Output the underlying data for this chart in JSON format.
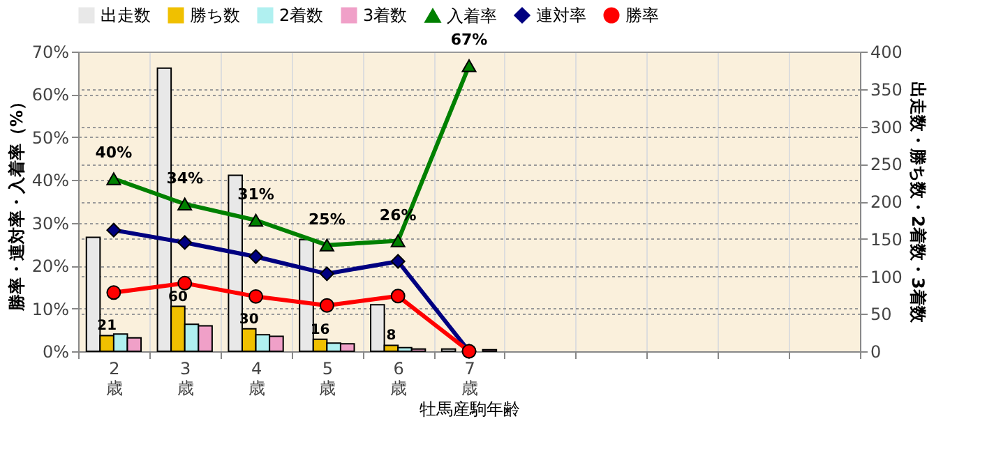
{
  "chart_data": {
    "type": "bar",
    "xlabel": "牡馬産駒年齢",
    "ylabel": "勝率・連対率・入着率（%）",
    "y2label": "出走数・勝ち数・2着数・3着数",
    "categories": [
      "2\n歳",
      "3\n歳",
      "4\n歳",
      "5\n歳",
      "6\n歳",
      "7\n歳",
      null,
      null,
      null,
      null,
      null
    ],
    "series": [
      {
        "name": "出走数",
        "axis": "y2",
        "color": "#e8e8e8",
        "values": [
          152,
          378,
          235,
          149,
          62,
          3,
          null,
          null,
          null,
          null,
          null
        ]
      },
      {
        "name": "勝ち数",
        "axis": "y2",
        "color": "#f0c000",
        "values": [
          21,
          60,
          30,
          16,
          8,
          0,
          null,
          null,
          null,
          null,
          null
        ],
        "value_labels": [
          "21",
          "60",
          "30",
          "16",
          "8",
          null,
          null,
          null,
          null,
          null,
          null
        ]
      },
      {
        "name": "2着数",
        "axis": "y2",
        "color": "#b0f0f0",
        "values": [
          23,
          36,
          22,
          11,
          5,
          0,
          null,
          null,
          null,
          null,
          null
        ]
      },
      {
        "name": "3着数",
        "axis": "y2",
        "color": "#f0a0c8",
        "values": [
          18,
          34,
          20,
          10,
          3,
          2,
          null,
          null,
          null,
          null,
          null
        ]
      },
      {
        "name": "入着率",
        "type": "line",
        "marker": "triangle",
        "color": "#008000",
        "values": [
          40.3,
          34.4,
          30.6,
          24.8,
          25.8,
          66.7,
          null,
          null,
          null,
          null,
          null
        ],
        "value_labels": [
          "40%",
          "34%",
          "31%",
          "25%",
          "26%",
          "67%",
          null,
          null,
          null,
          null,
          null
        ]
      },
      {
        "name": "連対率",
        "type": "line",
        "marker": "diamond",
        "color": "#000080",
        "values": [
          28.3,
          25.4,
          22.1,
          18.1,
          21.0,
          0,
          null,
          null,
          null,
          null,
          null
        ]
      },
      {
        "name": "勝率",
        "type": "line",
        "marker": "circle",
        "color": "#ff0000",
        "values": [
          13.7,
          15.9,
          12.8,
          10.7,
          12.9,
          0,
          null,
          null,
          null,
          null,
          null
        ]
      }
    ],
    "ylim": [
      0,
      70
    ],
    "yticks": [
      {
        "value": 0,
        "label": "0%"
      },
      {
        "value": 10,
        "label": "10%"
      },
      {
        "value": 20,
        "label": "20%"
      },
      {
        "value": 30,
        "label": "30%"
      },
      {
        "value": 40,
        "label": "40%"
      },
      {
        "value": 50,
        "label": "50%"
      },
      {
        "value": 60,
        "label": "60%"
      },
      {
        "value": 70,
        "label": "70%"
      }
    ],
    "y2lim": [
      0,
      400
    ],
    "y2ticks": [
      0,
      50,
      100,
      150,
      200,
      250,
      300,
      350,
      400
    ],
    "grid": true,
    "legend": "top"
  }
}
